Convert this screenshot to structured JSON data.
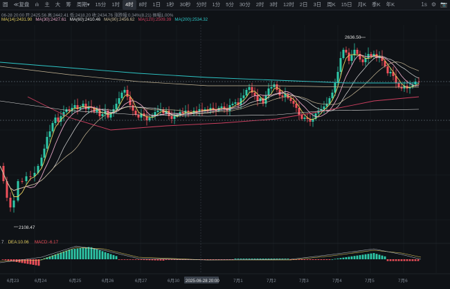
{
  "toolbar": {
    "items": [
      {
        "label": "圆",
        "active": false
      },
      {
        "label": "≪复盘",
        "active": false
      },
      {
        "label": "ılı",
        "active": false
      },
      {
        "label": "主",
        "active": false
      },
      {
        "label": "大",
        "active": false
      },
      {
        "label": "筹",
        "active": false
      },
      {
        "label": "周期▾",
        "active": false
      },
      {
        "label": "15分",
        "active": false
      },
      {
        "label": "1时",
        "active": false
      },
      {
        "label": "4时",
        "active": true
      },
      {
        "label": "8时",
        "active": false
      },
      {
        "label": "1日",
        "active": false
      },
      {
        "label": "1秒",
        "active": false
      },
      {
        "label": "30秒",
        "active": false
      },
      {
        "label": "分时",
        "active": false
      },
      {
        "label": "1分",
        "active": false
      },
      {
        "label": "5分",
        "active": false
      },
      {
        "label": "30分",
        "active": false
      },
      {
        "label": "2时",
        "active": false
      },
      {
        "label": "3时",
        "active": false
      },
      {
        "label": "12时",
        "active": false
      },
      {
        "label": "2日",
        "active": false
      },
      {
        "label": "3日",
        "active": false
      },
      {
        "label": "周K",
        "active": false
      },
      {
        "label": "15日",
        "active": false
      },
      {
        "label": "月K",
        "active": false
      },
      {
        "label": "季K",
        "active": false
      },
      {
        "label": "年K",
        "active": false
      }
    ],
    "right": {
      "time_label": "1s",
      "gear_icon": "⚙",
      "camera_icon": "📷"
    }
  },
  "info": {
    "ohlc": "06-28 20:00  开:2425.56  高:2442.41  低:2418.20  收:2434.76  涨跌幅:0.34%(8.21)  振幅1.00%",
    "ma": [
      {
        "label": "MA(14):2431.90",
        "color": "#e6d060"
      },
      {
        "label": "MA(30):2427.61",
        "color": "#e8a8c8"
      },
      {
        "label": "MA(60):2410.46",
        "color": "#e0e0e0"
      },
      {
        "label": "MA(90):2456.62",
        "color": "#c8b896"
      },
      {
        "label": "MA(120):2509.39",
        "color": "#d04060"
      },
      {
        "label": "MA(200):2534.32",
        "color": "#2ec8c8"
      }
    ],
    "macd": [
      {
        "label": "7",
        "color": "#c0c4cc"
      },
      {
        "label": "DEA:10.06",
        "color": "#e6d060"
      },
      {
        "label": "MACD:-6.17",
        "color": "#f0505a"
      }
    ]
  },
  "annotations": {
    "high": "2636.50",
    "low": "2108.47",
    "crosshair_time": "2025-06-28 20:00"
  },
  "xaxis": [
    "6月23",
    "6月24",
    "6月25",
    "6月26",
    "6月27",
    "6月30",
    "7月1",
    "7月2",
    "7月3",
    "7月4",
    "7月5",
    "7月6"
  ],
  "colors": {
    "up": "#2ec8a8",
    "down": "#f0505a",
    "bg": "#0f1216",
    "grid": "#1c2027"
  },
  "chart_data": {
    "type": "candlestick",
    "interval": "4时",
    "high": 2636.5,
    "low": 2108.47
  }
}
